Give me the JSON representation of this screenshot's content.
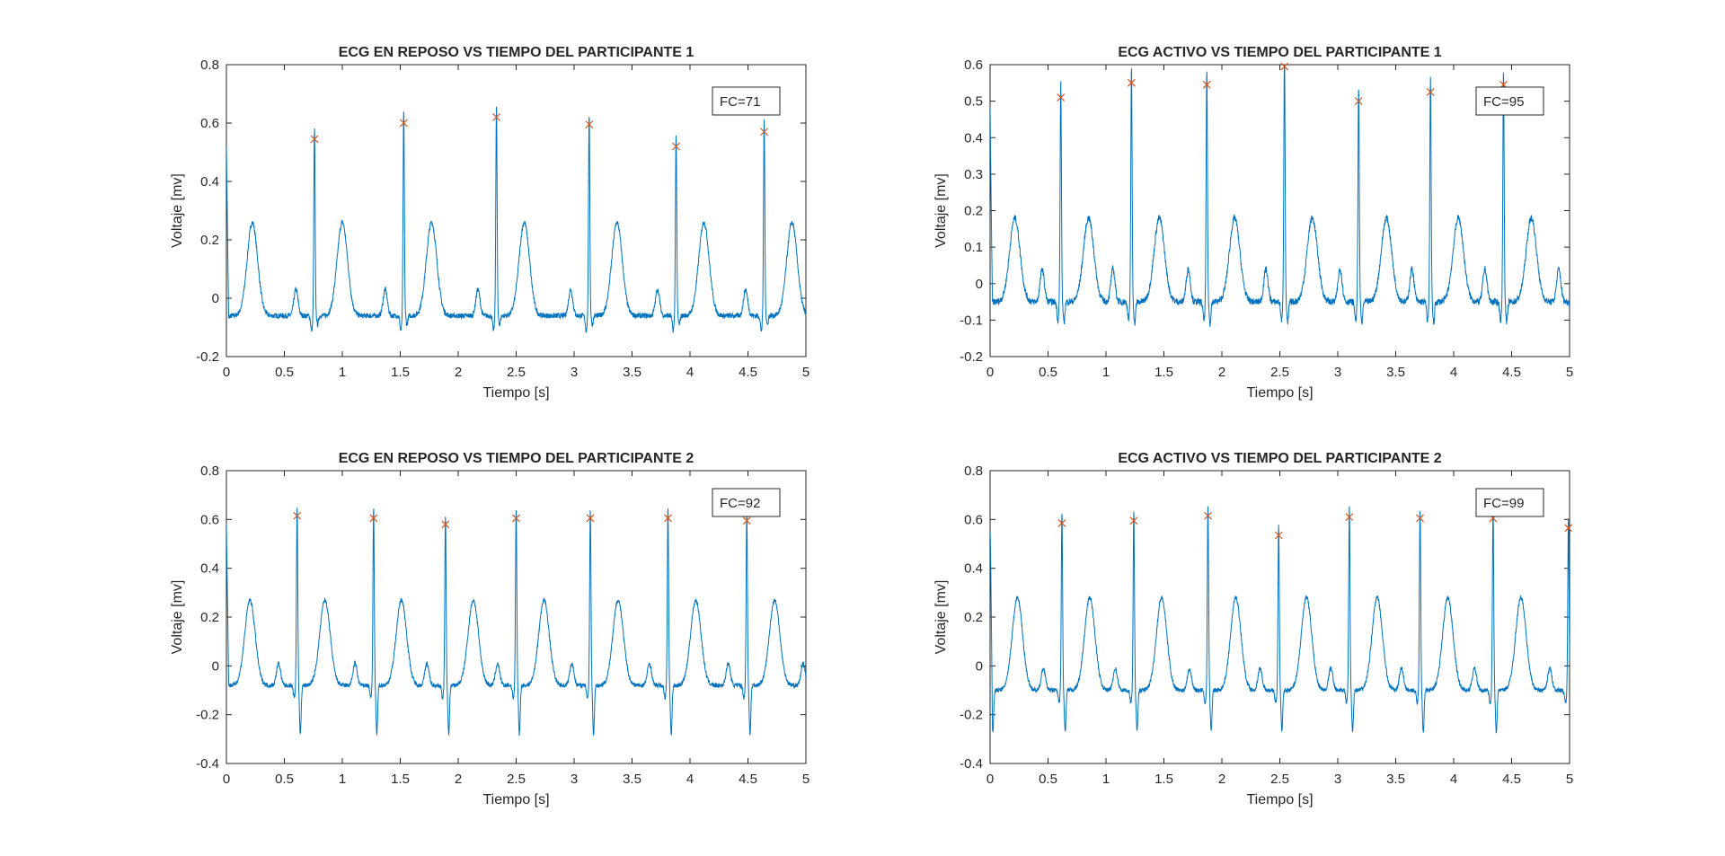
{
  "figure": {
    "trace_color": "#0072BD",
    "peak_color": "#D95319",
    "axis_color": "#262626"
  },
  "chart_data": [
    {
      "type": "line",
      "title": "ECG EN REPOSO VS TIEMPO DEL PARTICIPANTE 1",
      "xlabel": "Tiempo [s]",
      "ylabel": "Voltaje [mv]",
      "xlim": [
        0,
        5
      ],
      "ylim": [
        -0.2,
        0.8
      ],
      "xticks": [
        "0",
        "0.5",
        "1",
        "1.5",
        "2",
        "2.5",
        "3",
        "3.5",
        "4",
        "4.5",
        "5"
      ],
      "yticks": [
        "-0.2",
        "0",
        "0.2",
        "0.4",
        "0.6",
        "0.8"
      ],
      "annotation": "FC=71",
      "grid": false,
      "series": [
        {
          "values": {
            "r_peaks_t": [
              0.76,
              1.53,
              2.33,
              3.13,
              3.88,
              4.64
            ],
            "r_peaks_v": [
              0.545,
              0.6,
              0.62,
              0.595,
              0.52,
              0.57
            ],
            "baseline": -0.06,
            "t_wave": 0.26,
            "s_depth": -0.09
          }
        },
        {
          "marker": "x",
          "x": [
            0.76,
            1.53,
            2.33,
            3.13,
            3.88,
            4.64
          ],
          "y": [
            0.545,
            0.6,
            0.62,
            0.595,
            0.52,
            0.57
          ]
        }
      ]
    },
    {
      "type": "line",
      "title": "ECG ACTIVO VS TIEMPO DEL PARTICIPANTE 1",
      "xlabel": "Tiempo [s]",
      "ylabel": "Voltaje [mv]",
      "xlim": [
        0,
        5
      ],
      "ylim": [
        -0.2,
        0.6
      ],
      "xticks": [
        "0",
        "0.5",
        "1",
        "1.5",
        "2",
        "2.5",
        "3",
        "3.5",
        "4",
        "4.5",
        "5"
      ],
      "yticks": [
        "-0.2",
        "-0.1",
        "0",
        "0.1",
        "0.2",
        "0.3",
        "0.4",
        "0.5",
        "0.6"
      ],
      "annotation": "FC=95",
      "grid": false,
      "series": [
        {
          "values": {
            "r_peaks_t": [
              0.61,
              1.22,
              1.87,
              2.54,
              3.18,
              3.8,
              4.43
            ],
            "r_peaks_v": [
              0.51,
              0.55,
              0.545,
              0.595,
              0.5,
              0.525,
              0.545
            ],
            "baseline": -0.05,
            "t_wave": 0.18,
            "s_depth": -0.11
          }
        },
        {
          "marker": "x",
          "x": [
            0.61,
            1.22,
            1.87,
            2.54,
            3.18,
            3.8,
            4.43
          ],
          "y": [
            0.51,
            0.55,
            0.545,
            0.595,
            0.5,
            0.525,
            0.545
          ]
        }
      ]
    },
    {
      "type": "line",
      "title": "ECG EN REPOSO VS TIEMPO DEL PARTICIPANTE 2",
      "xlabel": "Tiempo [s]",
      "ylabel": "Voltaje [mv]",
      "xlim": [
        0,
        5
      ],
      "ylim": [
        -0.4,
        0.8
      ],
      "xticks": [
        "0",
        "0.5",
        "1",
        "1.5",
        "2",
        "2.5",
        "3",
        "3.5",
        "4",
        "4.5",
        "5"
      ],
      "yticks": [
        "-0.4",
        "-0.2",
        "0",
        "0.2",
        "0.4",
        "0.6",
        "0.8"
      ],
      "annotation": "FC=92",
      "grid": false,
      "series": [
        {
          "values": {
            "r_peaks_t": [
              0.61,
              1.27,
              1.89,
              2.5,
              3.14,
              3.81,
              4.49
            ],
            "r_peaks_v": [
              0.615,
              0.605,
              0.58,
              0.605,
              0.605,
              0.605,
              0.595
            ],
            "baseline": -0.08,
            "t_wave": 0.27,
            "s_depth": -0.28
          }
        },
        {
          "marker": "x",
          "x": [
            0.61,
            1.27,
            1.89,
            2.5,
            3.14,
            3.81,
            4.49
          ],
          "y": [
            0.615,
            0.605,
            0.58,
            0.605,
            0.605,
            0.605,
            0.595
          ]
        }
      ]
    },
    {
      "type": "line",
      "title": "ECG ACTIVO VS TIEMPO DEL PARTICIPANTE 2",
      "xlabel": "Tiempo [s]",
      "ylabel": "Voltaje [mv]",
      "xlim": [
        0,
        5
      ],
      "ylim": [
        -0.4,
        0.8
      ],
      "xticks": [
        "0",
        "0.5",
        "1",
        "1.5",
        "2",
        "2.5",
        "3",
        "3.5",
        "4",
        "4.5",
        "5"
      ],
      "yticks": [
        "-0.4",
        "-0.2",
        "0",
        "0.2",
        "0.4",
        "0.6",
        "0.8"
      ],
      "annotation": "FC=99",
      "grid": false,
      "series": [
        {
          "values": {
            "r_peaks_t": [
              0.62,
              1.24,
              1.88,
              2.49,
              3.1,
              3.71,
              4.34,
              4.99
            ],
            "r_peaks_v": [
              0.585,
              0.595,
              0.615,
              0.535,
              0.61,
              0.605,
              0.605,
              0.565
            ],
            "baseline": -0.1,
            "t_wave": 0.28,
            "s_depth": -0.27
          }
        },
        {
          "marker": "x",
          "x": [
            0.62,
            1.24,
            1.88,
            2.49,
            3.1,
            3.71,
            4.34,
            4.99
          ],
          "y": [
            0.585,
            0.595,
            0.615,
            0.535,
            0.61,
            0.605,
            0.605,
            0.565
          ]
        }
      ]
    }
  ]
}
